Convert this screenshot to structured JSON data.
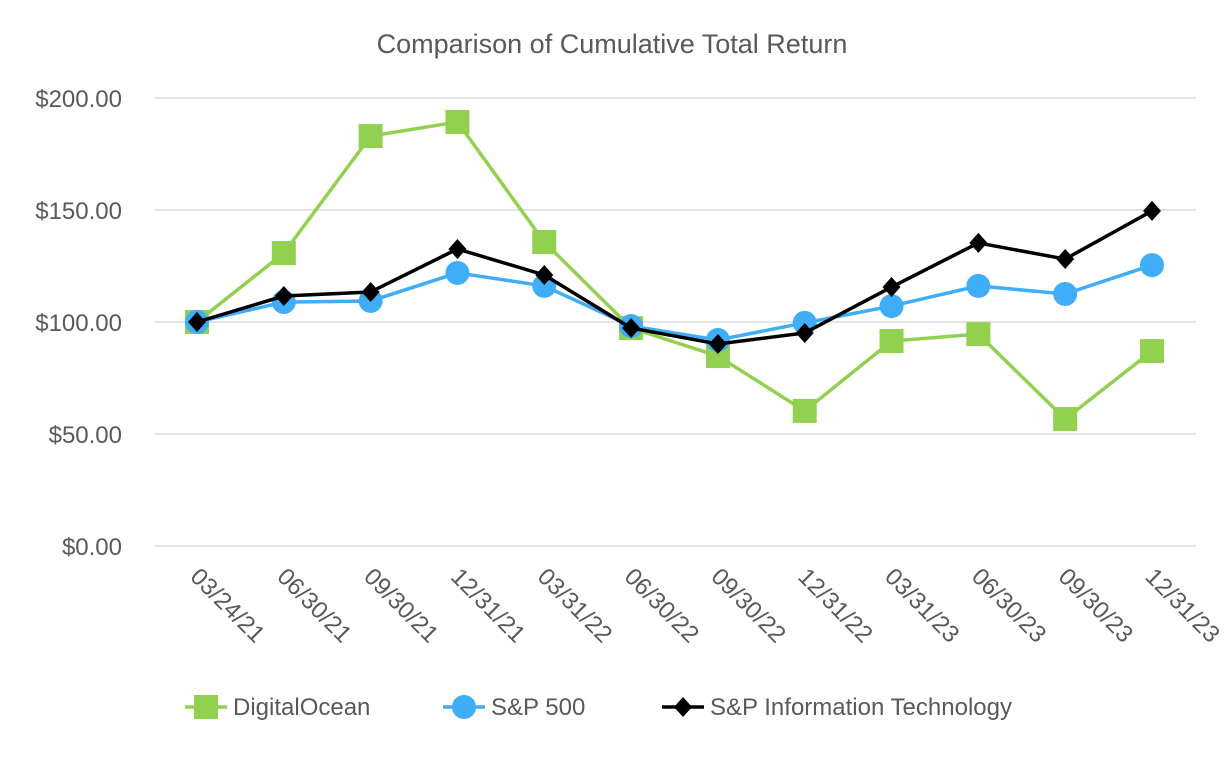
{
  "chart_data": {
    "type": "line",
    "title": "Comparison of Cumulative Total Return",
    "xlabel": "",
    "ylabel": "",
    "ylim": [
      0,
      200
    ],
    "yticks": [
      0,
      50,
      100,
      150,
      200
    ],
    "ytick_labels": [
      "$0.00",
      "$50.00",
      "$100.00",
      "$150.00",
      "$200.00"
    ],
    "grid": true,
    "legend_position": "bottom",
    "categories": [
      "03/24/21",
      "06/30/21",
      "09/30/21",
      "12/31/21",
      "03/31/22",
      "06/30/22",
      "09/30/22",
      "12/31/22",
      "03/31/23",
      "06/30/23",
      "09/30/23",
      "12/31/23"
    ],
    "series": [
      {
        "name": "DigitalOcean",
        "color": "#92d14f",
        "marker": "square",
        "values": [
          100,
          130.8,
          183,
          189.3,
          135.7,
          97.3,
          84.8,
          60.3,
          91.5,
          94.6,
          56.7,
          87
        ]
      },
      {
        "name": "S&P 500",
        "color": "#3fadf8",
        "marker": "circle",
        "values": [
          100,
          108.9,
          109.4,
          121.9,
          116.1,
          98.2,
          92,
          99.6,
          107.1,
          116.1,
          112.5,
          125.4
        ]
      },
      {
        "name": "S&P Information Technology",
        "color": "#000000",
        "marker": "diamond",
        "values": [
          100,
          111.6,
          113.4,
          132.6,
          121,
          97.3,
          90.2,
          95.1,
          115.6,
          135.3,
          128.1,
          149.6
        ]
      }
    ]
  }
}
